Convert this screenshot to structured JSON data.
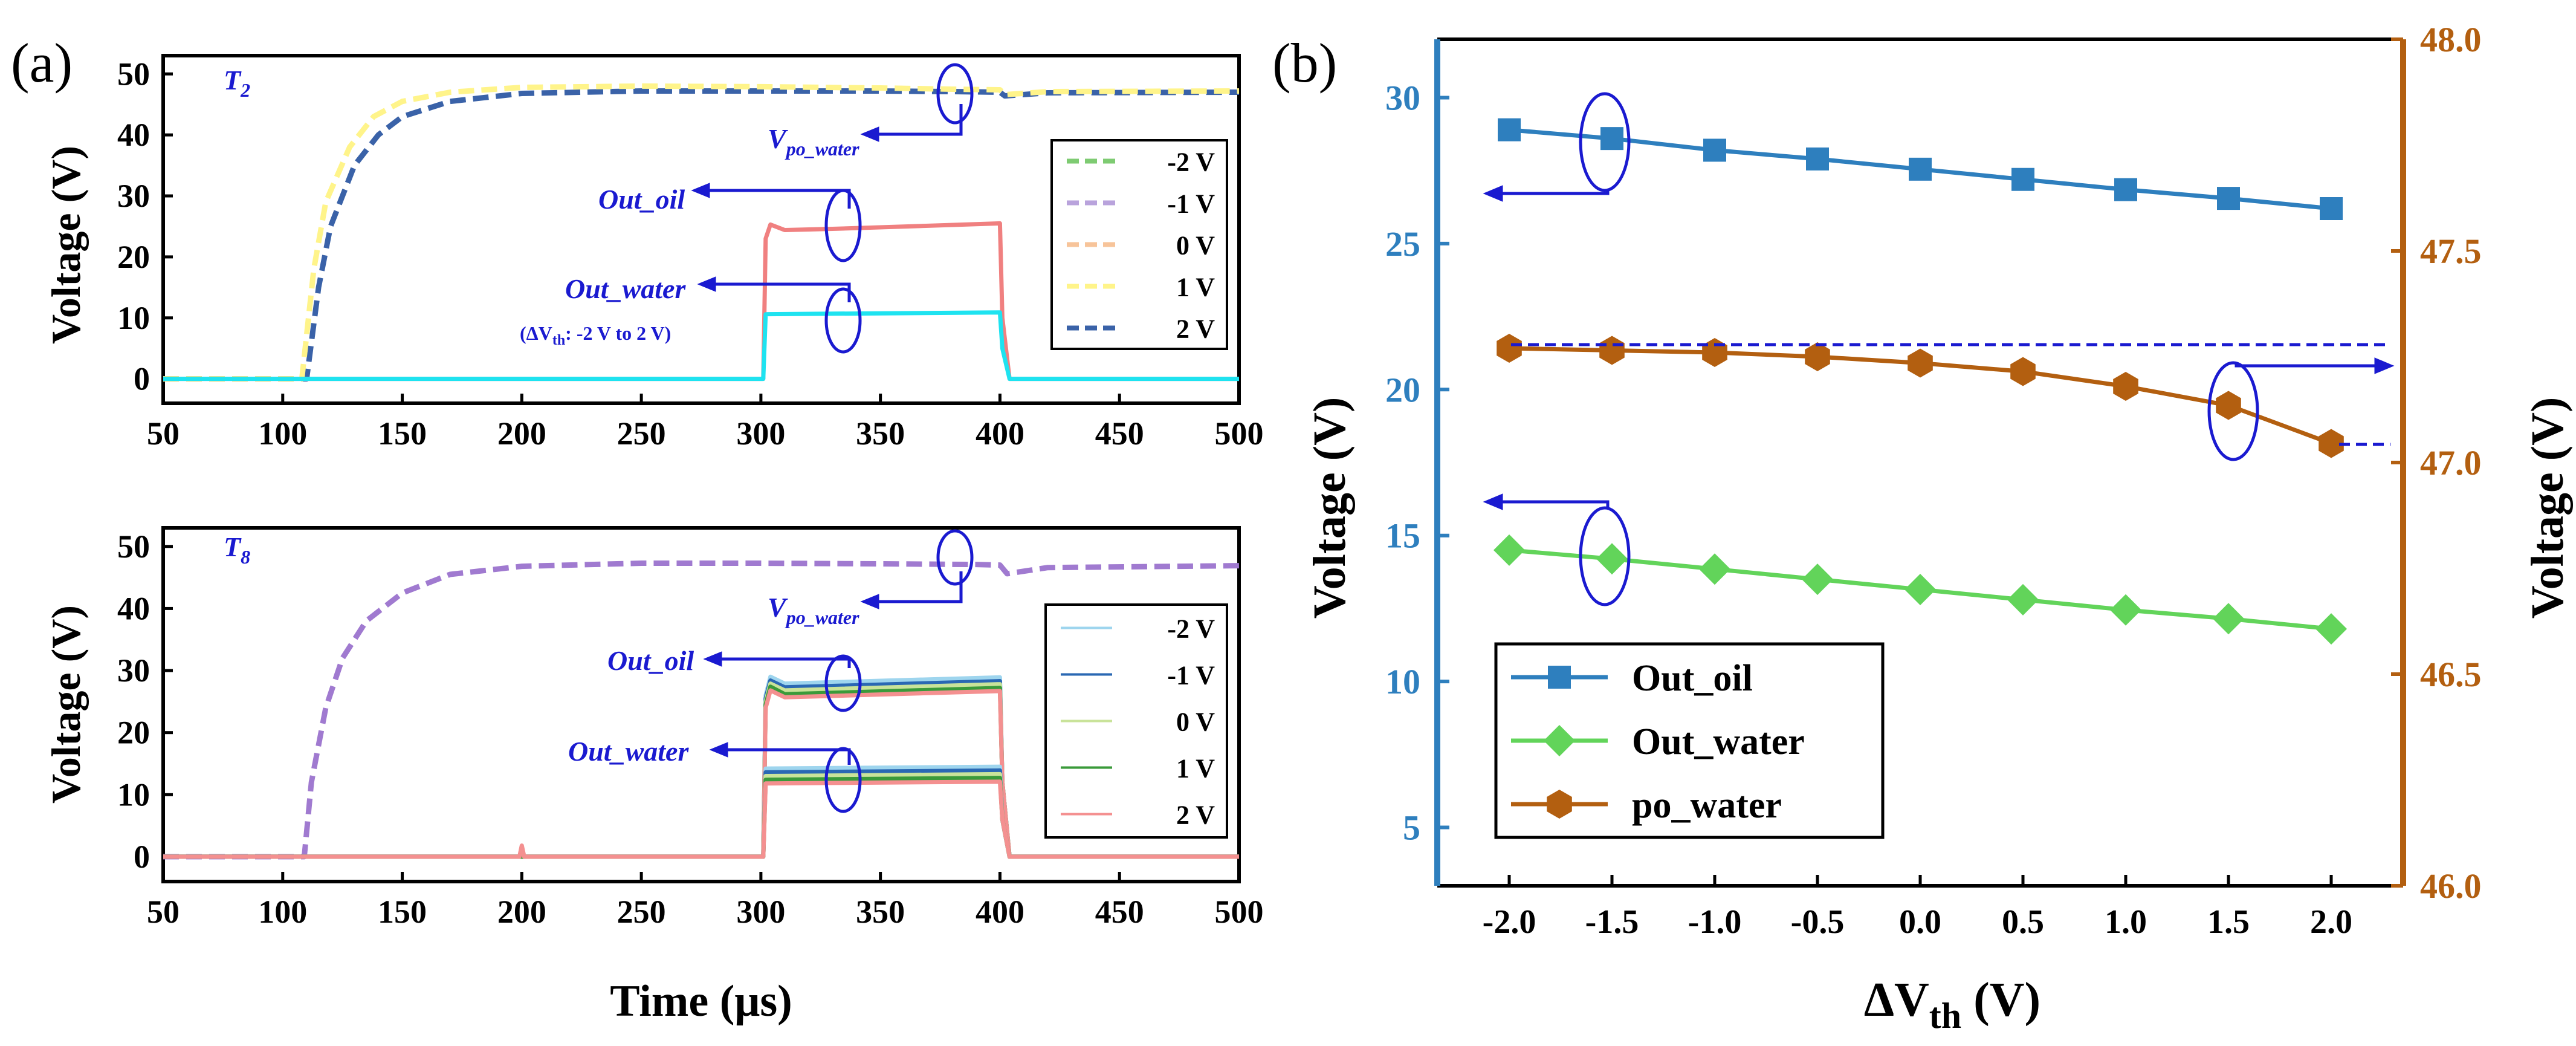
{
  "chart_data": [
    {
      "type": "line",
      "panel": "(a)",
      "subplot": "T2",
      "title": "",
      "xlabel": "",
      "ylabel": "Voltage (V)",
      "xlim": [
        50,
        500
      ],
      "ylim": [
        -4,
        53
      ],
      "xticks": [
        50,
        100,
        150,
        200,
        250,
        300,
        350,
        400,
        450,
        500
      ],
      "yticks": [
        0,
        10,
        20,
        30,
        40,
        50
      ],
      "label_main": "T",
      "label_sub": "2",
      "annotations": {
        "vpo_main": "V",
        "vpo_sub": "po_water",
        "out_oil": "Out_oil",
        "out_water": "Out_water",
        "dvth_open": "(ΔV",
        "dvth_sub": "th",
        "dvth_rest": ": -2 V to 2 V)"
      },
      "legend": [
        "-2 V",
        "-1 V",
        "0 V",
        "1 V",
        "2 V"
      ],
      "legend_colors": [
        "#7ecb72",
        "#b9a3dc",
        "#f7c49a",
        "#fff48a",
        "#3a62a8"
      ],
      "series": [
        {
          "name": "2 V",
          "color": "#3a62a8",
          "dash": true,
          "x": [
            50,
            110,
            115,
            120,
            130,
            140,
            150,
            170,
            200,
            250,
            300,
            350,
            380,
            400,
            402,
            420,
            500
          ],
          "y": [
            0,
            0,
            15,
            25,
            35,
            40,
            43,
            45.5,
            46.8,
            47.2,
            47.2,
            47.2,
            47.1,
            47.0,
            46.4,
            46.9,
            47.0
          ]
        },
        {
          "name": "1 V",
          "color": "#fff48a",
          "dash": true,
          "x": [
            50,
            108,
            113,
            118,
            128,
            138,
            150,
            170,
            200,
            250,
            300,
            350,
            380,
            400,
            402,
            420,
            500
          ],
          "y": [
            0,
            0,
            18,
            29,
            38,
            43,
            45.5,
            47,
            47.8,
            48,
            47.9,
            47.7,
            47.5,
            47.4,
            46.6,
            47.1,
            47.2
          ]
        },
        {
          "name": "out_oil",
          "color": "#f08080",
          "dash": false,
          "x": [
            50,
            301,
            302,
            304,
            310,
            330,
            370,
            400,
            401,
            404,
            500
          ],
          "y": [
            0,
            0,
            23,
            25.3,
            24.4,
            24.6,
            25.1,
            25.5,
            10,
            0,
            0
          ]
        },
        {
          "name": "out_water",
          "color": "#1ee3f0",
          "dash": false,
          "x": [
            50,
            301,
            302,
            400,
            401,
            404,
            500
          ],
          "y": [
            0,
            0,
            10.6,
            10.9,
            5,
            0,
            0
          ]
        }
      ]
    },
    {
      "type": "line",
      "panel": "(a)",
      "subplot": "T8",
      "title": "",
      "xlabel": "Time (μs)",
      "ylabel": "Voltage (V)",
      "xlim": [
        50,
        500
      ],
      "ylim": [
        -4,
        53
      ],
      "xticks": [
        50,
        100,
        150,
        200,
        250,
        300,
        350,
        400,
        450,
        500
      ],
      "yticks": [
        0,
        10,
        20,
        30,
        40,
        50
      ],
      "label_main": "T",
      "label_sub": "8",
      "annotations": {
        "vpo_main": "V",
        "vpo_sub": "po_water",
        "out_oil": "Out_oil",
        "out_water": "Out_water"
      },
      "legend": [
        "-2 V",
        "-1 V",
        "0 V",
        "1 V",
        "2 V"
      ],
      "legend_colors": [
        "#9ed5ee",
        "#2a68b3",
        "#c9e39a",
        "#3a9a3a",
        "#f49090"
      ],
      "series": [
        {
          "name": "po_water",
          "color": "#a07ad0",
          "dash": true,
          "x": [
            50,
            109,
            112,
            118,
            125,
            135,
            150,
            170,
            200,
            250,
            300,
            350,
            390,
            400,
            403,
            420,
            500
          ],
          "y": [
            0,
            0,
            12,
            24,
            32,
            38,
            42.5,
            45.5,
            46.8,
            47.3,
            47.3,
            47.2,
            47.1,
            47.0,
            45.6,
            46.6,
            46.9
          ]
        },
        {
          "name": "oil -2 V",
          "color": "#9ed5ee",
          "x": [
            50,
            301,
            302,
            304,
            310,
            400,
            401,
            404,
            500
          ],
          "y": [
            0,
            0,
            26,
            29,
            27.9,
            28.9,
            12,
            0,
            0
          ]
        },
        {
          "name": "oil -1 V",
          "color": "#2a68b3",
          "x": [
            50,
            301,
            302,
            304,
            310,
            400,
            401,
            404,
            500
          ],
          "y": [
            0,
            0,
            25.5,
            28.4,
            27.3,
            28.3,
            12,
            0,
            0
          ]
        },
        {
          "name": "oil 0 V",
          "color": "#c9e39a",
          "x": [
            50,
            301,
            302,
            304,
            310,
            400,
            401,
            404,
            500
          ],
          "y": [
            0,
            0,
            25,
            27.9,
            26.8,
            27.8,
            12,
            0,
            0
          ]
        },
        {
          "name": "oil 1 V",
          "color": "#3a9a3a",
          "x": [
            50,
            301,
            302,
            304,
            310,
            400,
            401,
            404,
            500
          ],
          "y": [
            0,
            0,
            24.5,
            27.4,
            26.2,
            27.2,
            12,
            0,
            0
          ]
        },
        {
          "name": "oil 2 V",
          "color": "#f49090",
          "x": [
            50,
            301,
            302,
            304,
            310,
            400,
            401,
            404,
            500
          ],
          "y": [
            0,
            0,
            24,
            26.8,
            25.7,
            26.7,
            12,
            0,
            0
          ]
        },
        {
          "name": "water -2 V",
          "color": "#9ed5ee",
          "x": [
            50,
            301,
            302,
            400,
            401,
            404,
            500
          ],
          "y": [
            0,
            0,
            14.2,
            14.5,
            6,
            0,
            0
          ]
        },
        {
          "name": "water -1 V",
          "color": "#2a68b3",
          "x": [
            50,
            301,
            302,
            400,
            401,
            404,
            500
          ],
          "y": [
            0,
            0,
            13.6,
            13.9,
            6,
            0,
            0
          ]
        },
        {
          "name": "water 0 V",
          "color": "#c9e39a",
          "x": [
            50,
            301,
            302,
            400,
            401,
            404,
            500
          ],
          "y": [
            0,
            0,
            13.0,
            13.3,
            6,
            0,
            0
          ]
        },
        {
          "name": "water 1 V",
          "color": "#3a9a3a",
          "x": [
            50,
            301,
            302,
            400,
            401,
            404,
            500
          ],
          "y": [
            0,
            0,
            12.4,
            12.7,
            6,
            0,
            0
          ]
        },
        {
          "name": "water 2 V",
          "color": "#f49090",
          "x": [
            50,
            199,
            200,
            201,
            301,
            302,
            400,
            401,
            404,
            500
          ],
          "y": [
            0,
            0,
            1.8,
            0,
            0,
            11.8,
            12.1,
            6,
            0,
            0
          ]
        }
      ]
    },
    {
      "type": "line",
      "panel": "(b)",
      "title": "",
      "xlabel_main": "ΔV",
      "xlabel_sub": "th",
      "xlabel_rest": " (V)",
      "ylabel_left": "Voltage (V)",
      "ylabel_right": "Voltage (V)",
      "x": [
        -2.0,
        -1.5,
        -1.0,
        -0.5,
        0.0,
        0.5,
        1.0,
        1.5,
        2.0
      ],
      "xticks": [
        "-2.0",
        "-1.5",
        "-1.0",
        "-0.5",
        "0.0",
        "0.5",
        "1.0",
        "1.5",
        "2.0"
      ],
      "xlim": [
        -2.35,
        2.35
      ],
      "ylim_left": [
        3,
        32
      ],
      "ylim_right": [
        46.0,
        48.0
      ],
      "yticks_left": [
        5,
        10,
        15,
        20,
        25,
        30
      ],
      "yticks_right": [
        "46.0",
        "46.5",
        "47.0",
        "47.5",
        "48.0"
      ],
      "left_axis_color": "#2e7fbe",
      "right_axis_color": "#b35f10",
      "series": [
        {
          "name": "Out_oil",
          "axis": "left",
          "marker": "square",
          "color": "#2e7fbe",
          "values": [
            28.9,
            28.6,
            28.2,
            27.9,
            27.55,
            27.2,
            26.85,
            26.55,
            26.2
          ]
        },
        {
          "name": "Out_water",
          "axis": "left",
          "marker": "diamond",
          "color": "#62d45a",
          "values": [
            14.5,
            14.2,
            13.85,
            13.5,
            13.15,
            12.8,
            12.45,
            12.15,
            11.8
          ]
        },
        {
          "name": "po_water",
          "axis": "right",
          "marker": "hexagon",
          "color": "#b35f10",
          "values": [
            47.27,
            47.265,
            47.26,
            47.25,
            47.235,
            47.215,
            47.18,
            47.135,
            47.045
          ]
        }
      ]
    }
  ],
  "panel_labels": {
    "a": "(a)",
    "b": "(b)"
  }
}
